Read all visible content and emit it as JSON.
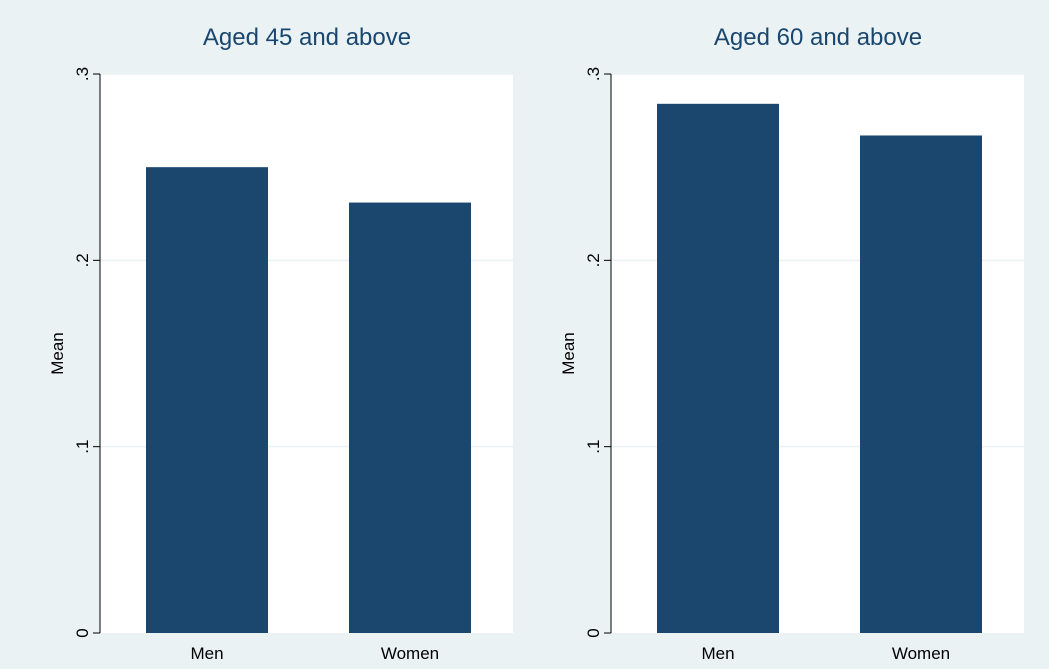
{
  "colors": {
    "background": "#eaf2f3",
    "plot_area": "#ffffff",
    "bar": "#1b466d",
    "gridline": "#eaf2f3",
    "title": "#1a476f"
  },
  "chart_data": [
    {
      "type": "bar",
      "title": "Aged 45 and above",
      "ylabel": "Mean",
      "xlabel": "",
      "categories": [
        "Men",
        "Women"
      ],
      "values": [
        0.25,
        0.231
      ],
      "ylim": [
        0,
        0.3
      ],
      "yticks": [
        0,
        0.1,
        0.2,
        0.3
      ],
      "ytick_labels": [
        "0",
        ".1",
        ".2",
        ".3"
      ],
      "ytick_orientation": "vertical",
      "grid": true,
      "legend": "none"
    },
    {
      "type": "bar",
      "title": "Aged 60 and above",
      "ylabel": "Mean",
      "xlabel": "",
      "categories": [
        "Men",
        "Women"
      ],
      "values": [
        0.284,
        0.267
      ],
      "ylim": [
        0,
        0.3
      ],
      "yticks": [
        0,
        0.1,
        0.2,
        0.3
      ],
      "ytick_labels": [
        "0",
        ".1",
        ".2",
        ".3"
      ],
      "ytick_orientation": "vertical",
      "grid": true,
      "legend": "none"
    }
  ]
}
